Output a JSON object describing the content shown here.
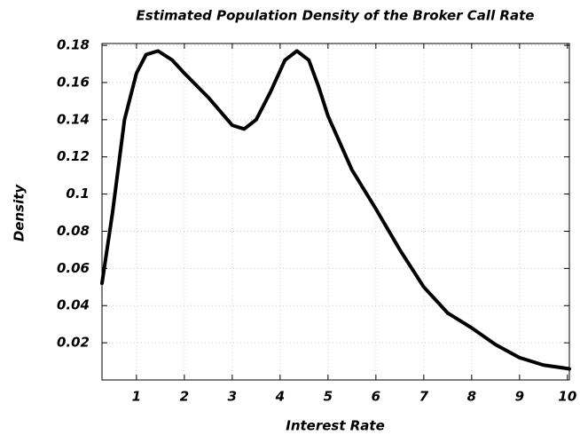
{
  "chart_data": {
    "type": "line",
    "title": "Estimated Population Density of the Broker Call Rate",
    "x_label": "Interest Rate",
    "y_label": "Density",
    "x": [
      0.28,
      0.5,
      0.75,
      1.0,
      1.2,
      1.45,
      1.75,
      2.0,
      2.5,
      3.0,
      3.25,
      3.5,
      3.8,
      4.1,
      4.35,
      4.6,
      4.8,
      5.0,
      5.5,
      6.0,
      6.5,
      7.0,
      7.5,
      8.0,
      8.5,
      9.0,
      9.5,
      10.04
    ],
    "values": [
      0.052,
      0.09,
      0.14,
      0.165,
      0.175,
      0.177,
      0.172,
      0.165,
      0.152,
      0.137,
      0.135,
      0.14,
      0.155,
      0.172,
      0.177,
      0.172,
      0.158,
      0.142,
      0.113,
      0.092,
      0.07,
      0.05,
      0.036,
      0.028,
      0.019,
      0.012,
      0.008,
      0.006
    ],
    "color": "#000000",
    "xlim": [
      0.28,
      10.04
    ],
    "ylim": [
      0,
      0.181
    ],
    "xticks": [
      1,
      2,
      3,
      4,
      5,
      6,
      7,
      8,
      9,
      10
    ],
    "yticks": [
      0.02,
      0.04,
      0.06,
      0.08,
      0.1,
      0.12,
      0.14,
      0.16,
      0.18
    ],
    "grid": true
  }
}
